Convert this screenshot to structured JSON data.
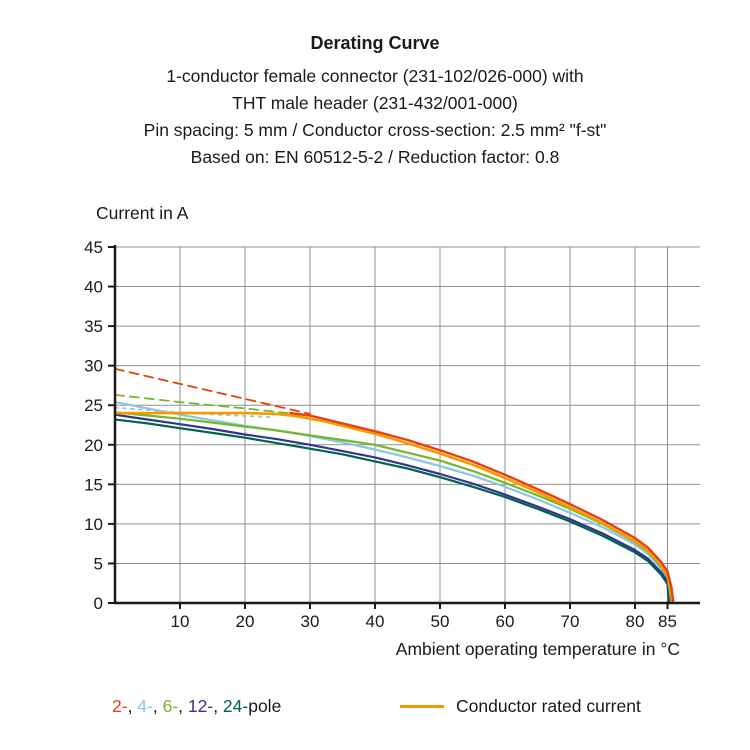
{
  "header": {
    "title": "Derating Curve",
    "lines": [
      "1-conductor female connector (231-102/026-000) with",
      "THT male header (231-432/001-000)",
      "Pin spacing: 5 mm / Conductor cross-section: 2.5 mm² \"f-st\"",
      "Based on: EN 60512-5-2 / Reduction factor: 0.8"
    ]
  },
  "legend": {
    "poles": [
      {
        "label": "2-",
        "color": "#e74011"
      },
      {
        "label": "4-",
        "color": "#89c6e4"
      },
      {
        "label": "6-",
        "color": "#76b72a"
      },
      {
        "label": "12-",
        "color": "#33348e"
      },
      {
        "label": "24-",
        "color": "#00634c"
      }
    ],
    "separator": ", ",
    "pole_suffix": "pole",
    "rated_label": "Conductor rated current",
    "rated_color": "#f59b00"
  },
  "chart_data": {
    "type": "line",
    "title": "Derating Curve",
    "xlabel": "Ambient operating temperature in °C",
    "ylabel": "Current in A",
    "xlim": [
      0,
      90
    ],
    "ylim": [
      0,
      45
    ],
    "xticks": [
      10,
      20,
      30,
      40,
      50,
      60,
      70,
      80,
      85
    ],
    "yticks": [
      0,
      5,
      10,
      15,
      20,
      25,
      30,
      35,
      40,
      45
    ],
    "grid": true,
    "colors": {
      "grid": "#8f8f8f",
      "axis": "#1a1a1a"
    },
    "series": [
      {
        "name": "2-pole rated (dashed)",
        "color": "#e74011",
        "dash": "9 6",
        "width": 1.8,
        "x": [
          0,
          10,
          20,
          30
        ],
        "y": [
          29.6,
          27.7,
          25.8,
          23.9
        ]
      },
      {
        "name": "6-pole rated (dashed)",
        "color": "#76b72a",
        "dash": "9 6",
        "width": 1.8,
        "x": [
          0,
          10,
          20,
          30
        ],
        "y": [
          26.3,
          25.4,
          24.6,
          23.7
        ]
      },
      {
        "name": "12-pole rated (dashed)",
        "color": "#a5c3d1",
        "dash": "3 5",
        "width": 1.8,
        "x": [
          0,
          8,
          16,
          24
        ],
        "y": [
          24.7,
          24.2,
          23.8,
          23.5
        ]
      },
      {
        "name": "4-pole",
        "color": "#89c6e4",
        "dash": "",
        "width": 2.2,
        "x": [
          0,
          5,
          10,
          15,
          20,
          25,
          30,
          35,
          40,
          45,
          50,
          55,
          60,
          65,
          70,
          75,
          80,
          82,
          84,
          85,
          85.5
        ],
        "y": [
          25.4,
          24.6,
          23.8,
          23.1,
          22.4,
          21.8,
          21.1,
          20.3,
          19.4,
          18.4,
          17.3,
          16.1,
          14.7,
          13.1,
          11.4,
          9.6,
          7.4,
          6.2,
          4.4,
          3.1,
          0
        ]
      },
      {
        "name": "24-pole",
        "color": "#00634c",
        "dash": "",
        "width": 2.2,
        "x": [
          0,
          5,
          10,
          15,
          20,
          25,
          30,
          35,
          40,
          45,
          50,
          55,
          60,
          65,
          70,
          75,
          80,
          82,
          84,
          85,
          85.2
        ],
        "y": [
          23.2,
          22.7,
          22.1,
          21.5,
          20.9,
          20.2,
          19.5,
          18.8,
          17.9,
          17.0,
          15.9,
          14.7,
          13.4,
          11.9,
          10.3,
          8.5,
          6.4,
          5.3,
          3.6,
          2.4,
          0
        ]
      },
      {
        "name": "12-pole",
        "color": "#33348e",
        "dash": "",
        "width": 2.2,
        "x": [
          0,
          5,
          10,
          15,
          20,
          25,
          30,
          35,
          40,
          45,
          50,
          55,
          60,
          65,
          70,
          75,
          80,
          82,
          84,
          85,
          85.3
        ],
        "y": [
          23.8,
          23.2,
          22.6,
          22.0,
          21.3,
          20.7,
          20.0,
          19.2,
          18.4,
          17.4,
          16.3,
          15.1,
          13.7,
          12.2,
          10.6,
          8.8,
          6.7,
          5.6,
          3.9,
          2.7,
          0
        ]
      },
      {
        "name": "6-pole",
        "color": "#76b72a",
        "dash": "",
        "width": 2.2,
        "x": [
          0,
          5,
          10,
          15,
          20,
          25,
          30,
          35,
          40,
          45,
          50,
          55,
          60,
          65,
          70,
          75,
          80,
          82,
          84,
          85,
          85.6
        ],
        "y": [
          24.1,
          23.7,
          23.3,
          22.8,
          22.3,
          21.8,
          21.2,
          20.6,
          20.0,
          19.0,
          18.0,
          16.7,
          15.2,
          13.6,
          11.9,
          10.0,
          7.7,
          6.5,
          4.6,
          3.3,
          0
        ]
      },
      {
        "name": "conductor rated current",
        "color": "#f59b00",
        "dash": "",
        "width": 2.6,
        "x": [
          0,
          10,
          20,
          25,
          28,
          32,
          36,
          40,
          45,
          50,
          55,
          60,
          65,
          70,
          75,
          80,
          82,
          84,
          85,
          85.5,
          85.8
        ],
        "y": [
          24.0,
          24.0,
          24.0,
          23.9,
          23.6,
          23.0,
          22.2,
          21.4,
          20.2,
          18.9,
          17.5,
          15.8,
          14.0,
          12.1,
          10.1,
          7.8,
          6.6,
          4.8,
          3.6,
          1.8,
          0
        ]
      },
      {
        "name": "2-pole",
        "color": "#e74011",
        "dash": "",
        "width": 2.4,
        "x": [
          27,
          30,
          35,
          40,
          45,
          50,
          55,
          60,
          65,
          70,
          75,
          80,
          82,
          84,
          85,
          85.6,
          85.9
        ],
        "y": [
          24.0,
          23.7,
          22.7,
          21.7,
          20.6,
          19.3,
          17.9,
          16.2,
          14.4,
          12.5,
          10.5,
          8.2,
          7.0,
          5.2,
          4.0,
          2.0,
          0
        ]
      }
    ]
  }
}
